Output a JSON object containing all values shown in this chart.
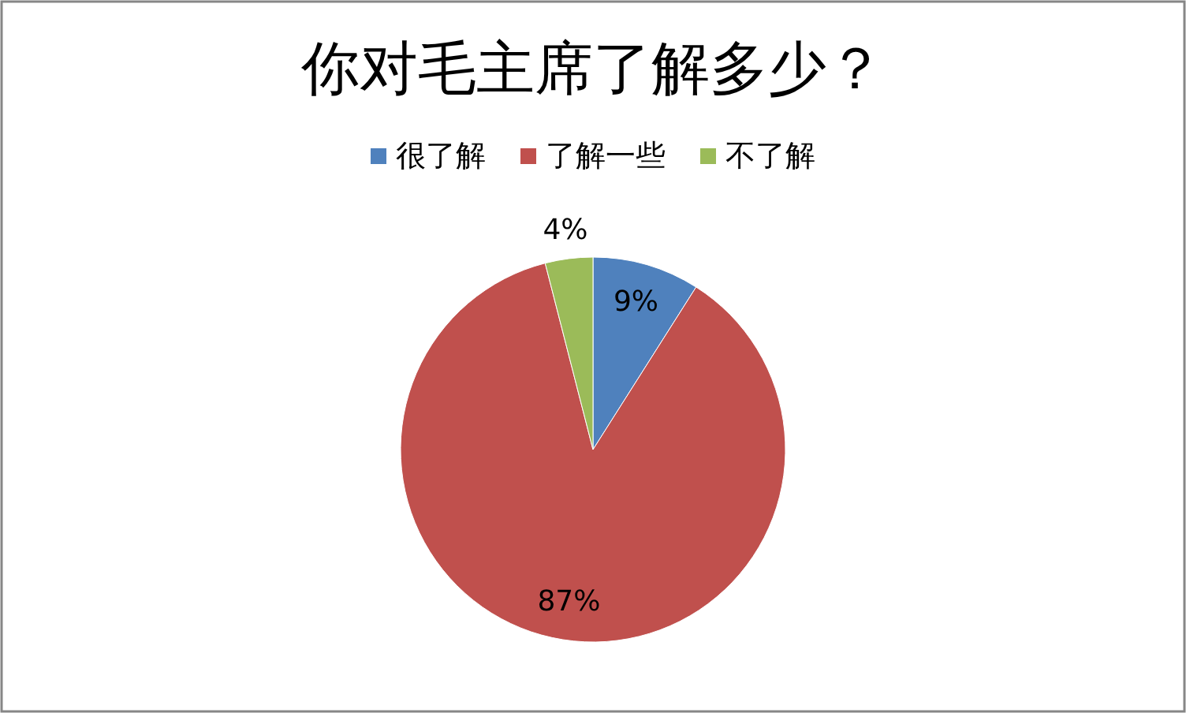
{
  "chart_data": {
    "type": "pie",
    "title": "你对毛主席了解多少？",
    "categories": [
      "很了解",
      "了解一些",
      "不了解"
    ],
    "values": [
      9,
      87,
      4
    ],
    "colors": [
      "#4f81bd",
      "#c0504d",
      "#9bbb59"
    ],
    "value_labels": [
      "9%",
      "87%",
      "4%"
    ],
    "legend": "top"
  }
}
